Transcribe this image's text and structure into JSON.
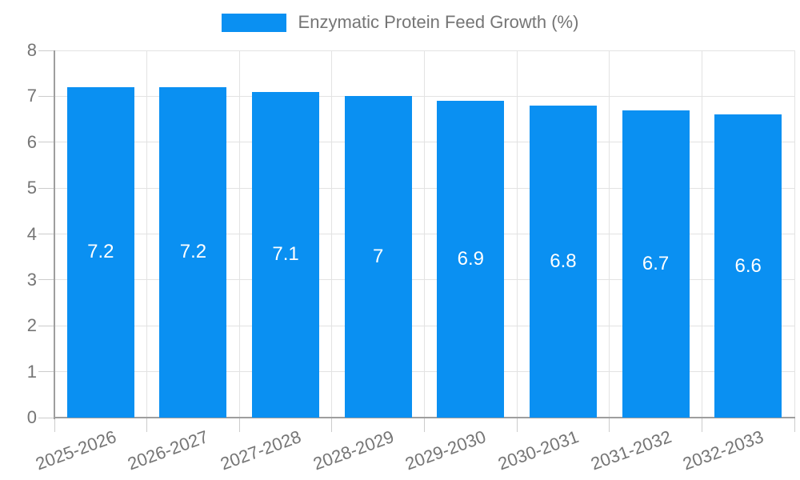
{
  "chart_data": {
    "type": "bar",
    "title": "",
    "legend": "Enzymatic Protein Feed Growth (%)",
    "legend_position": "top-center",
    "categories": [
      "2025-2026",
      "2026-2027",
      "2027-2028",
      "2028-2029",
      "2029-2030",
      "2030-2031",
      "2031-2032",
      "2032-2033"
    ],
    "values": [
      7.2,
      7.2,
      7.1,
      7,
      6.9,
      6.8,
      6.7,
      6.6
    ],
    "value_labels": [
      "7.2",
      "7.2",
      "7.1",
      "7",
      "6.9",
      "6.8",
      "6.7",
      "6.6"
    ],
    "xlabel": "",
    "ylabel": "",
    "ylim": [
      0,
      8
    ],
    "yticks": [
      0,
      1,
      2,
      3,
      4,
      5,
      6,
      7,
      8
    ],
    "grid": true,
    "colors": {
      "bar": "#0a90f2",
      "grid": "#e3e3e3",
      "tick": "#cccccc",
      "axis": "#9e9e9e",
      "tick_text": "#757575",
      "value_label": "#ffffff",
      "background": "#ffffff"
    }
  }
}
